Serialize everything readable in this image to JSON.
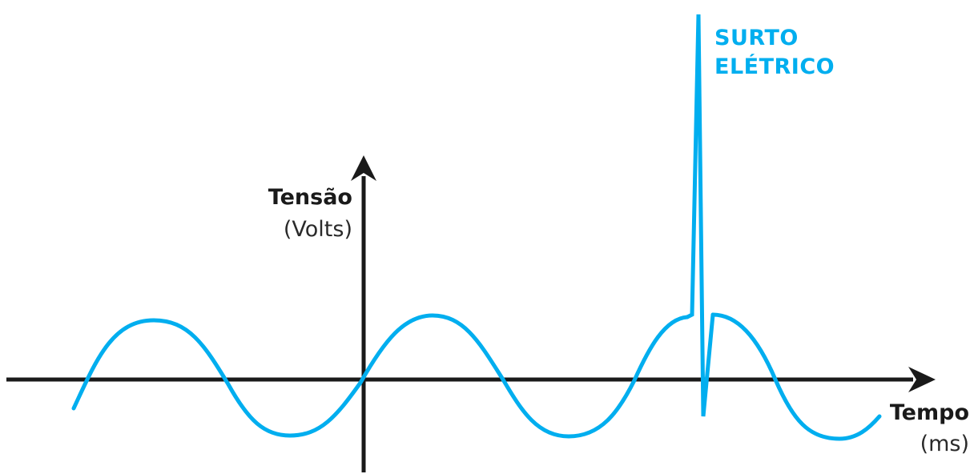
{
  "diagram": {
    "y_axis": {
      "title": "Tensão",
      "unit": "(Volts)"
    },
    "x_axis": {
      "title": "Tempo",
      "unit": "(ms)"
    },
    "annotation": {
      "line1": "SURTO",
      "line2": "ELÉTRICO"
    },
    "colors": {
      "wave": "#00aeef",
      "axis": "#1a1a1a",
      "annotation": "#00aeef"
    }
  }
}
